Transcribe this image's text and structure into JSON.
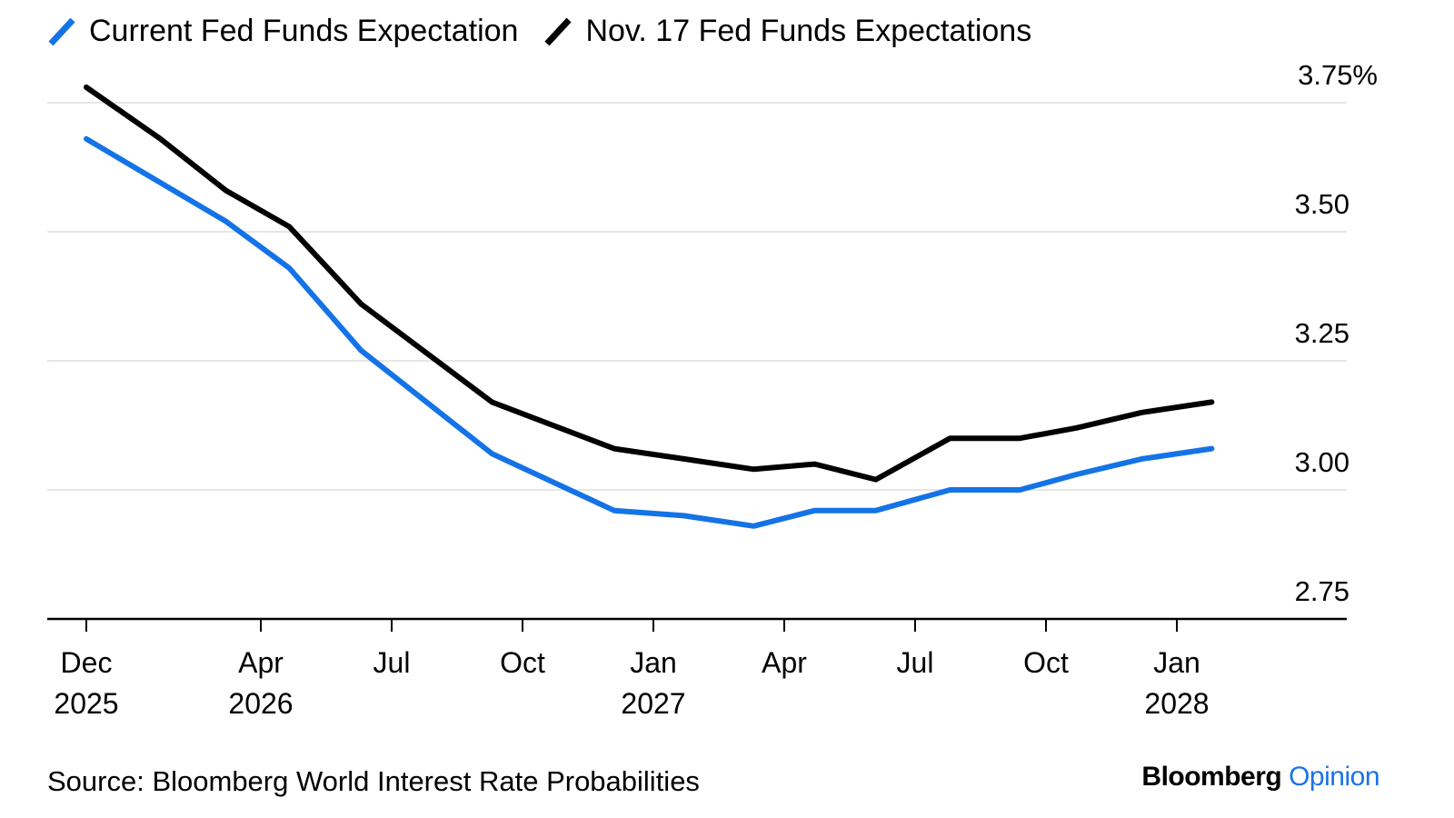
{
  "legend": [
    {
      "label": "Current Fed Funds Expectation",
      "color": "#1473e6"
    },
    {
      "label": "Nov. 17 Fed Funds Expectations",
      "color": "#000000"
    }
  ],
  "source": "Source: Bloomberg World Interest Rate Probabilities",
  "brand": {
    "name": "Bloomberg",
    "section": "Opinion",
    "section_color": "#1a73e8"
  },
  "chart_data": {
    "type": "line",
    "title": "",
    "xlabel": "",
    "ylabel": "",
    "x_unit": "months since Dec 2025",
    "xlim": [
      0,
      28
    ],
    "ylim": [
      2.75,
      3.8
    ],
    "y_ticks": [
      {
        "value": 3.75,
        "label": "3.75%"
      },
      {
        "value": 3.5,
        "label": "3.50"
      },
      {
        "value": 3.25,
        "label": "3.25"
      },
      {
        "value": 3.0,
        "label": "3.00"
      },
      {
        "value": 2.75,
        "label": "2.75"
      }
    ],
    "x_ticks": [
      {
        "value": 0,
        "label": "Dec",
        "sublabel": "2025"
      },
      {
        "value": 4,
        "label": "Apr",
        "sublabel": "2026"
      },
      {
        "value": 7,
        "label": "Jul",
        "sublabel": ""
      },
      {
        "value": 10,
        "label": "Oct",
        "sublabel": ""
      },
      {
        "value": 13,
        "label": "Jan",
        "sublabel": "2027"
      },
      {
        "value": 16,
        "label": "Apr",
        "sublabel": ""
      },
      {
        "value": 19,
        "label": "Jul",
        "sublabel": ""
      },
      {
        "value": 22,
        "label": "Oct",
        "sublabel": ""
      },
      {
        "value": 25,
        "label": "Jan",
        "sublabel": "2028"
      }
    ],
    "grid": true,
    "legend_position": "top-left",
    "y_axis_side": "right",
    "series": [
      {
        "name": "Nov. 17 Fed Funds Expectations",
        "color": "#000000",
        "x": [
          0,
          1.7,
          3.2,
          4.65,
          6.3,
          9.3,
          12.1,
          13.7,
          15.3,
          16.7,
          18.1,
          19.8,
          21.4,
          22.7,
          24.2,
          25.8
        ],
        "values": [
          3.78,
          3.68,
          3.58,
          3.51,
          3.36,
          3.17,
          3.08,
          3.06,
          3.04,
          3.05,
          3.02,
          3.1,
          3.1,
          3.12,
          3.15,
          3.17
        ]
      },
      {
        "name": "Current Fed Funds Expectation",
        "color": "#1473e6",
        "x": [
          0,
          3.2,
          4.65,
          6.3,
          9.3,
          12.1,
          13.7,
          15.3,
          16.7,
          18.1,
          19.8,
          21.4,
          22.7,
          24.2,
          25.8
        ],
        "values": [
          3.68,
          3.52,
          3.43,
          3.27,
          3.07,
          2.96,
          2.95,
          2.93,
          2.96,
          2.96,
          3.0,
          3.0,
          3.03,
          3.06,
          3.08
        ]
      }
    ]
  }
}
